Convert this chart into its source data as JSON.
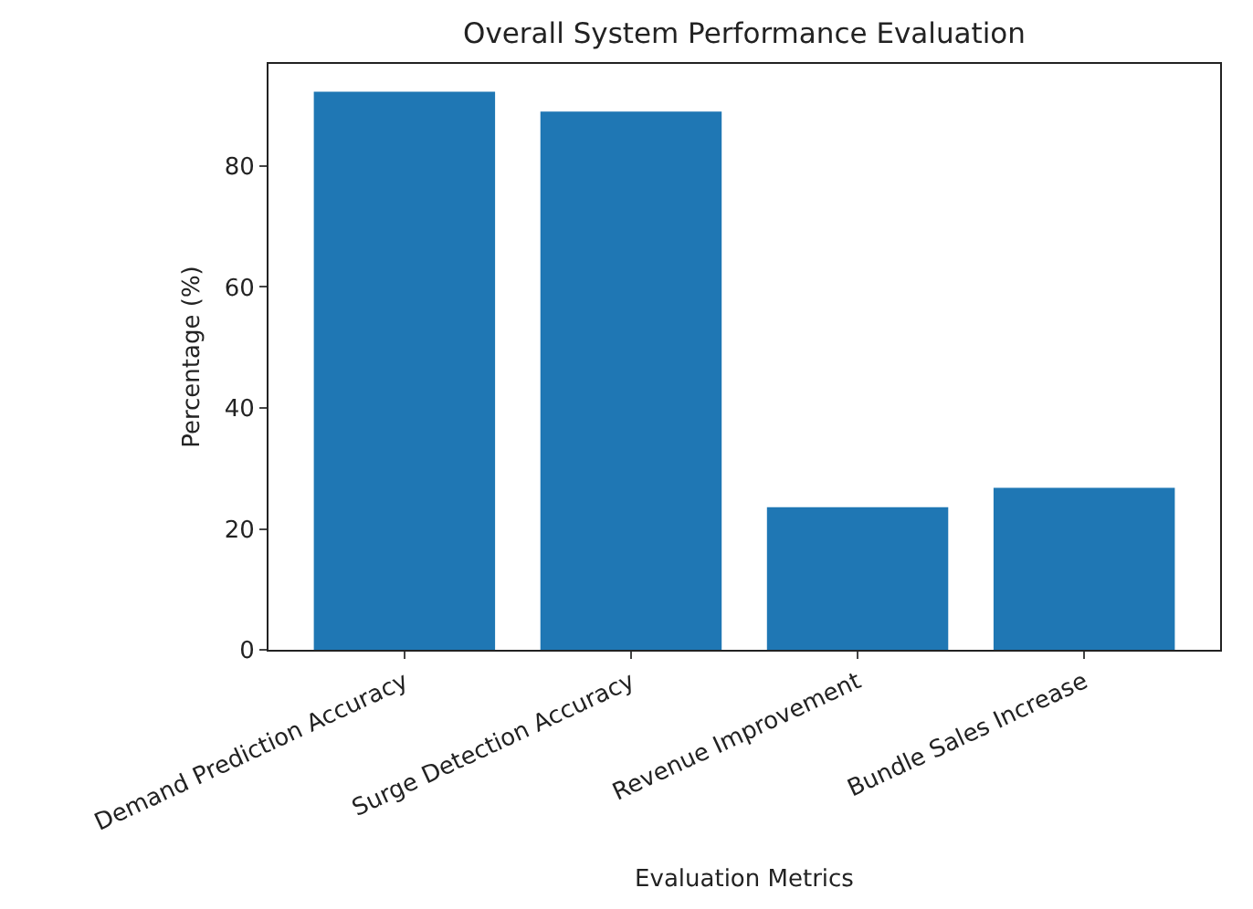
{
  "chart_data": {
    "type": "bar",
    "title": "Overall System Performance Evaluation",
    "xlabel": "Evaluation Metrics",
    "ylabel": "Percentage (%)",
    "categories": [
      "Demand Prediction Accuracy",
      "Surge Detection Accuracy",
      "Revenue Improvement",
      "Bundle Sales Increase"
    ],
    "values": [
      92.3,
      89.0,
      23.6,
      26.8
    ],
    "color": "#1f77b4",
    "ylim": [
      0,
      96.9
    ],
    "yticks": [
      0,
      20,
      40,
      60,
      80
    ]
  }
}
